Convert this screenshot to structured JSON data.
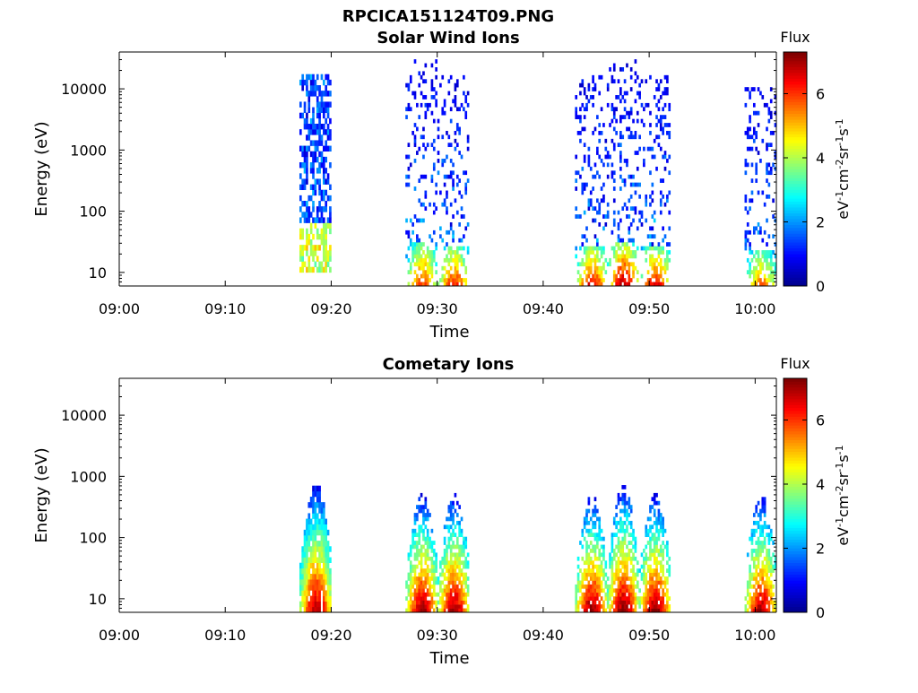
{
  "page": {
    "main_title": "RPCICA151124T09.PNG"
  },
  "colormap": [
    "#00008f",
    "#0000ff",
    "#0080ff",
    "#00ffff",
    "#80ff80",
    "#ffff00",
    "#ff8000",
    "#ff0000",
    "#800000"
  ],
  "chart_data": [
    {
      "type": "heatmap",
      "title": "Solar Wind Ions",
      "xlabel": "Time",
      "ylabel": "Energy (eV)",
      "xlim": [
        "09:00",
        "10:02"
      ],
      "ylim": [
        6,
        40000
      ],
      "yscale": "log",
      "x_ticks": [
        "09:00",
        "09:10",
        "09:20",
        "09:30",
        "09:40",
        "09:50",
        "10:00"
      ],
      "y_ticks": [
        "10",
        "100",
        "1000",
        "10000"
      ],
      "colorbar": {
        "label_top": "Flux",
        "unit_base": "eV",
        "unit_exp1": "-1",
        "unit_mid": "cm",
        "unit_exp2": "-2",
        "unit_sr": "sr",
        "unit_exp3": "-1",
        "unit_s": "s",
        "unit_exp4": "-1",
        "range": [
          0,
          7.3
        ],
        "ticks": [
          "0",
          "2",
          "4",
          "6"
        ]
      },
      "bursts": [
        {
          "start": "09:17",
          "end": "09:20",
          "energy_min": 10,
          "energy_max": 15000,
          "peak_flux": 4.8,
          "dense": true
        },
        {
          "start": "09:27",
          "end": "09:30",
          "energy_min": 6,
          "energy_max": 30000,
          "peak_flux": 6.0
        },
        {
          "start": "09:30",
          "end": "09:33",
          "energy_min": 6,
          "energy_max": 15000,
          "peak_flux": 6.2
        },
        {
          "start": "09:43",
          "end": "09:46",
          "energy_min": 6,
          "energy_max": 15000,
          "peak_flux": 6.5
        },
        {
          "start": "09:46",
          "end": "09:49",
          "energy_min": 6,
          "energy_max": 30000,
          "peak_flux": 7.0
        },
        {
          "start": "09:49",
          "end": "09:52",
          "energy_min": 6,
          "energy_max": 15000,
          "peak_flux": 6.5
        },
        {
          "start": "09:59",
          "end": "10:02",
          "energy_min": 6,
          "energy_max": 10000,
          "peak_flux": 5.5
        }
      ]
    },
    {
      "type": "heatmap",
      "title": "Cometary Ions",
      "xlabel": "Time",
      "ylabel": "Energy (eV)",
      "xlim": [
        "09:00",
        "10:02"
      ],
      "ylim": [
        6,
        40000
      ],
      "yscale": "log",
      "x_ticks": [
        "09:00",
        "09:10",
        "09:20",
        "09:30",
        "09:40",
        "09:50",
        "10:00"
      ],
      "y_ticks": [
        "10",
        "100",
        "1000",
        "10000"
      ],
      "colorbar": {
        "label_top": "Flux",
        "unit_base": "eV",
        "unit_exp1": "-1",
        "unit_mid": "cm",
        "unit_exp2": "-2",
        "unit_sr": "sr",
        "unit_exp3": "-1",
        "unit_s": "s",
        "unit_exp4": "-1",
        "range": [
          0,
          7.3
        ],
        "ticks": [
          "0",
          "2",
          "4",
          "6"
        ]
      },
      "bursts": [
        {
          "start": "09:17",
          "end": "09:20",
          "energy_min": 6,
          "energy_max": 700,
          "peak_flux": 7.0,
          "dense": true
        },
        {
          "start": "09:27",
          "end": "09:30",
          "energy_min": 6,
          "energy_max": 500,
          "peak_flux": 7.1
        },
        {
          "start": "09:30",
          "end": "09:33",
          "energy_min": 6,
          "energy_max": 500,
          "peak_flux": 7.1
        },
        {
          "start": "09:43",
          "end": "09:46",
          "energy_min": 6,
          "energy_max": 500,
          "peak_flux": 7.2
        },
        {
          "start": "09:46",
          "end": "09:49",
          "energy_min": 6,
          "energy_max": 700,
          "peak_flux": 7.2
        },
        {
          "start": "09:49",
          "end": "09:52",
          "energy_min": 6,
          "energy_max": 500,
          "peak_flux": 7.2
        },
        {
          "start": "09:59",
          "end": "10:02",
          "energy_min": 6,
          "energy_max": 500,
          "peak_flux": 7.0
        }
      ]
    }
  ]
}
